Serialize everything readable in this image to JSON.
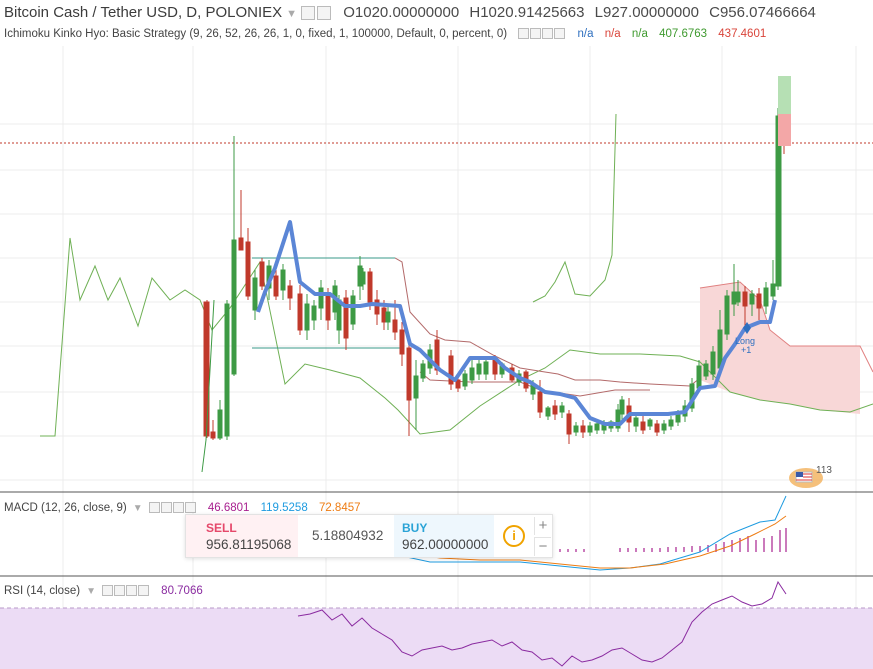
{
  "header": {
    "symbol": "Bitcoin Cash / Tether USD, D, POLONIEX",
    "open_label": "O",
    "open": "1020.00000000",
    "high_label": "H",
    "high": "1020.91425663",
    "low_label": "L",
    "low": "927.00000000",
    "close_label": "C",
    "close": "956.07466664"
  },
  "ichimoku": {
    "label": "Ichimoku Kinko Hyo: Basic Strategy (9, 26, 52, 26, 26, 1, 0, fixed, 1, 100000, Default, 0, percent, 0)",
    "v1": "n/a",
    "v2": "n/a",
    "v3": "n/a",
    "v4": "407.6763",
    "v5": "437.4601"
  },
  "macd": {
    "label": "MACD (12, 26, close, 9)",
    "histogram": "46.6801",
    "macd": "119.5258",
    "signal": "72.8457"
  },
  "rsi": {
    "label": "RSI (14, close)",
    "value": "80.7066"
  },
  "trade": {
    "sell_label": "SELL",
    "sell_price": "956.81195068",
    "spread": "5.18804932",
    "buy_label": "BUY",
    "buy_price": "962.00000000",
    "info": "i",
    "plus": "+",
    "minus": "−"
  },
  "signal": {
    "line1": "Long",
    "line2": "+1"
  },
  "flag_text": "113",
  "colors": {
    "up": "#3d9a44",
    "down": "#c0392b",
    "base_line": "#5b86d6",
    "cloud_fill": "#f8d7d7",
    "rsi_band": "#ecdcf5"
  },
  "chart_data": {
    "type": "candlestick",
    "instrument": "Bitcoin Cash / Tether USD",
    "interval": "D",
    "exchange": "POLONIEX",
    "last_ohlc": {
      "open": 1020.0,
      "high": 1020.91425663,
      "low": 927.0,
      "close": 956.07466664
    },
    "indicators": [
      "Ichimoku Kinko Hyo",
      "MACD (12, 26, close, 9)",
      "RSI (14, close)"
    ]
  }
}
